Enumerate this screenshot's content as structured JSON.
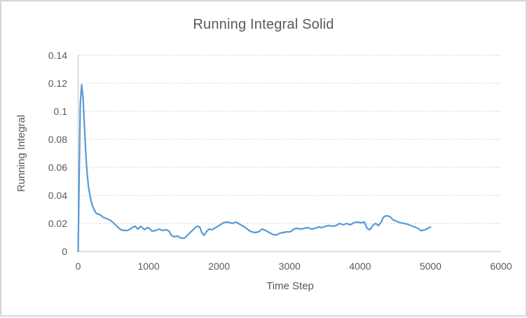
{
  "window": {
    "background_color": "#FFFFFF",
    "border_color": "#D6D6D6"
  },
  "chart_data": {
    "type": "line",
    "title": "Running Integral Solid",
    "xlabel": "Time Step",
    "ylabel": "Running Integral",
    "xlim": [
      0,
      6000
    ],
    "ylim": [
      0,
      0.14
    ],
    "x_tick_values": [
      0,
      1000,
      2000,
      3000,
      4000,
      5000,
      6000
    ],
    "x_tick_labels": [
      "0",
      "1000",
      "2000",
      "3000",
      "4000",
      "5000",
      "6000"
    ],
    "y_tick_values": [
      0,
      0.02,
      0.04,
      0.06,
      0.08,
      0.1,
      0.12,
      0.14
    ],
    "y_tick_labels": [
      "0",
      "0.02",
      "0.04",
      "0.06",
      "0.08",
      "0.1",
      "0.12",
      "0.14"
    ],
    "grid": "horizontal-dashed",
    "legend": "none",
    "line_color": "#5B9BD5",
    "text_color": "#595959",
    "gridline_color": "#D9D9D9",
    "axis_color": "#BFBFBF",
    "points": [
      [
        0,
        0.0
      ],
      [
        15,
        0.055
      ],
      [
        30,
        0.105
      ],
      [
        50,
        0.119
      ],
      [
        70,
        0.11
      ],
      [
        90,
        0.088
      ],
      [
        110,
        0.068
      ],
      [
        130,
        0.054
      ],
      [
        150,
        0.045
      ],
      [
        175,
        0.038
      ],
      [
        200,
        0.033
      ],
      [
        230,
        0.0295
      ],
      [
        260,
        0.027
      ],
      [
        290,
        0.0265
      ],
      [
        320,
        0.026
      ],
      [
        350,
        0.0245
      ],
      [
        400,
        0.0235
      ],
      [
        450,
        0.0225
      ],
      [
        500,
        0.0205
      ],
      [
        540,
        0.0185
      ],
      [
        580,
        0.0165
      ],
      [
        620,
        0.0152
      ],
      [
        660,
        0.015
      ],
      [
        700,
        0.015
      ],
      [
        740,
        0.016
      ],
      [
        780,
        0.0175
      ],
      [
        810,
        0.018
      ],
      [
        845,
        0.016
      ],
      [
        890,
        0.018
      ],
      [
        940,
        0.0155
      ],
      [
        980,
        0.017
      ],
      [
        1010,
        0.0165
      ],
      [
        1050,
        0.0145
      ],
      [
        1100,
        0.015
      ],
      [
        1150,
        0.016
      ],
      [
        1200,
        0.015
      ],
      [
        1250,
        0.0155
      ],
      [
        1290,
        0.0145
      ],
      [
        1320,
        0.0115
      ],
      [
        1360,
        0.0105
      ],
      [
        1410,
        0.011
      ],
      [
        1460,
        0.0095
      ],
      [
        1510,
        0.0095
      ],
      [
        1560,
        0.012
      ],
      [
        1610,
        0.0145
      ],
      [
        1660,
        0.017
      ],
      [
        1690,
        0.018
      ],
      [
        1725,
        0.0175
      ],
      [
        1755,
        0.0135
      ],
      [
        1785,
        0.0115
      ],
      [
        1825,
        0.0145
      ],
      [
        1860,
        0.016
      ],
      [
        1900,
        0.0155
      ],
      [
        1950,
        0.017
      ],
      [
        2000,
        0.0185
      ],
      [
        2060,
        0.0205
      ],
      [
        2120,
        0.021
      ],
      [
        2190,
        0.02
      ],
      [
        2240,
        0.021
      ],
      [
        2290,
        0.0195
      ],
      [
        2360,
        0.0175
      ],
      [
        2410,
        0.0155
      ],
      [
        2460,
        0.014
      ],
      [
        2510,
        0.0135
      ],
      [
        2560,
        0.014
      ],
      [
        2610,
        0.016
      ],
      [
        2660,
        0.015
      ],
      [
        2710,
        0.0135
      ],
      [
        2760,
        0.0122
      ],
      [
        2810,
        0.0117
      ],
      [
        2860,
        0.013
      ],
      [
        2910,
        0.0135
      ],
      [
        2960,
        0.014
      ],
      [
        3010,
        0.014
      ],
      [
        3060,
        0.016
      ],
      [
        3110,
        0.0165
      ],
      [
        3160,
        0.016
      ],
      [
        3210,
        0.0165
      ],
      [
        3260,
        0.017
      ],
      [
        3310,
        0.016
      ],
      [
        3360,
        0.0165
      ],
      [
        3410,
        0.0175
      ],
      [
        3460,
        0.017
      ],
      [
        3510,
        0.018
      ],
      [
        3560,
        0.0185
      ],
      [
        3610,
        0.018
      ],
      [
        3660,
        0.0185
      ],
      [
        3710,
        0.02
      ],
      [
        3760,
        0.019
      ],
      [
        3810,
        0.02
      ],
      [
        3860,
        0.019
      ],
      [
        3910,
        0.0205
      ],
      [
        3960,
        0.021
      ],
      [
        4010,
        0.0205
      ],
      [
        4060,
        0.021
      ],
      [
        4100,
        0.0165
      ],
      [
        4140,
        0.0155
      ],
      [
        4180,
        0.0185
      ],
      [
        4220,
        0.02
      ],
      [
        4260,
        0.0185
      ],
      [
        4300,
        0.021
      ],
      [
        4330,
        0.0245
      ],
      [
        4370,
        0.0255
      ],
      [
        4420,
        0.025
      ],
      [
        4470,
        0.0225
      ],
      [
        4520,
        0.0215
      ],
      [
        4570,
        0.0205
      ],
      [
        4620,
        0.02
      ],
      [
        4670,
        0.0195
      ],
      [
        4720,
        0.0185
      ],
      [
        4770,
        0.0175
      ],
      [
        4820,
        0.0165
      ],
      [
        4870,
        0.0148
      ],
      [
        4920,
        0.0155
      ],
      [
        4960,
        0.0165
      ],
      [
        5000,
        0.0175
      ]
    ]
  }
}
